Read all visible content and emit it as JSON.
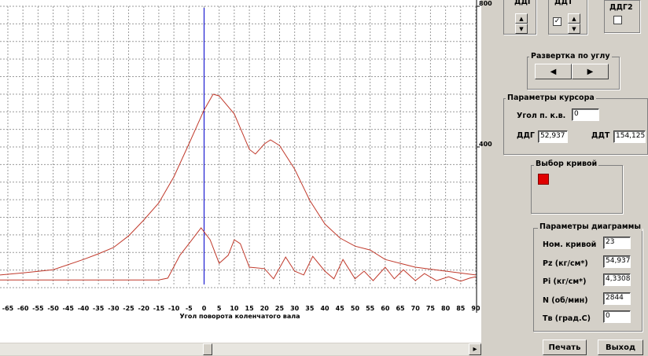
{
  "chart_data": {
    "type": "line",
    "x_label": "Угол поворота коленчатого вала",
    "xlim": [
      -67.6,
      90
    ],
    "ylim": [
      0,
      800
    ],
    "xticks": [
      -65,
      -60,
      -55,
      -50,
      -45,
      -40,
      -35,
      -30,
      -25,
      -20,
      -15,
      -10,
      -5,
      0,
      5,
      10,
      15,
      20,
      25,
      30,
      35,
      40,
      45,
      50,
      55,
      60,
      65,
      70,
      75,
      80,
      85,
      90
    ],
    "yticks": [
      400,
      800
    ],
    "ygrid": [
      0,
      50,
      100,
      150,
      200,
      250,
      300,
      350,
      400,
      450,
      500,
      550,
      600,
      650,
      700,
      750,
      800
    ],
    "grid": true,
    "cursor_x": 0,
    "cursor_color": "#0000cc",
    "series": [
      {
        "color": "#c0392b",
        "x": [
          -67.6,
          -60,
          -50,
          -40,
          -35,
          -30,
          -25,
          -20,
          -15,
          -10,
          -5,
          0,
          3,
          5,
          10,
          15,
          17,
          20,
          22,
          25,
          30,
          35,
          40,
          45,
          50,
          55,
          60,
          65,
          70,
          80,
          90
        ],
        "values": [
          36,
          42,
          51,
          80,
          96,
          114,
          147,
          192,
          241,
          315,
          409,
          505,
          550,
          545,
          494,
          393,
          380,
          409,
          420,
          404,
          337,
          248,
          181,
          141,
          118,
          107,
          80,
          69,
          58,
          47,
          36
        ]
      },
      {
        "color": "#c0392b",
        "x": [
          -67.6,
          -15,
          -12,
          -8,
          -5,
          -1,
          2,
          5,
          8,
          10,
          12,
          15,
          20,
          23,
          27,
          30,
          33,
          36,
          40,
          43,
          46,
          50,
          53,
          56,
          60,
          63,
          66,
          70,
          73,
          77,
          81,
          85,
          88,
          90
        ],
        "values": [
          22,
          22,
          27,
          92,
          125,
          170,
          136,
          69,
          92,
          136,
          125,
          58,
          54,
          25,
          87,
          47,
          36,
          89,
          47,
          25,
          80,
          25,
          47,
          20,
          58,
          25,
          51,
          20,
          40,
          20,
          31,
          18,
          27,
          31
        ]
      }
    ]
  },
  "ui": {
    "ddg_label": "ДДГ",
    "ddt_label": "ДДТ",
    "ddg2_label": "ДДГ2",
    "sweep_title": "Развертка по углу",
    "cursor": {
      "title": "Параметры курсора",
      "angle_label": "Угол п. к.в.",
      "angle": "0",
      "ddg_label": "ДДГ",
      "ddg": "52,937",
      "ddt_label": "ДДТ",
      "ddt": "154,125"
    },
    "curve_title": "Выбор кривой",
    "params": {
      "title": "Параметры диаграммы",
      "rows": [
        [
          "Ном. кривой",
          "23"
        ],
        [
          "Pz (кг/см*)",
          "54,937"
        ],
        [
          "Pi (кг/см*)",
          "4,3308"
        ],
        [
          "N (об/мин)",
          "2844"
        ],
        [
          "Тв (град.С)",
          "0"
        ]
      ]
    },
    "print": "Печать",
    "exit": "Выход"
  }
}
